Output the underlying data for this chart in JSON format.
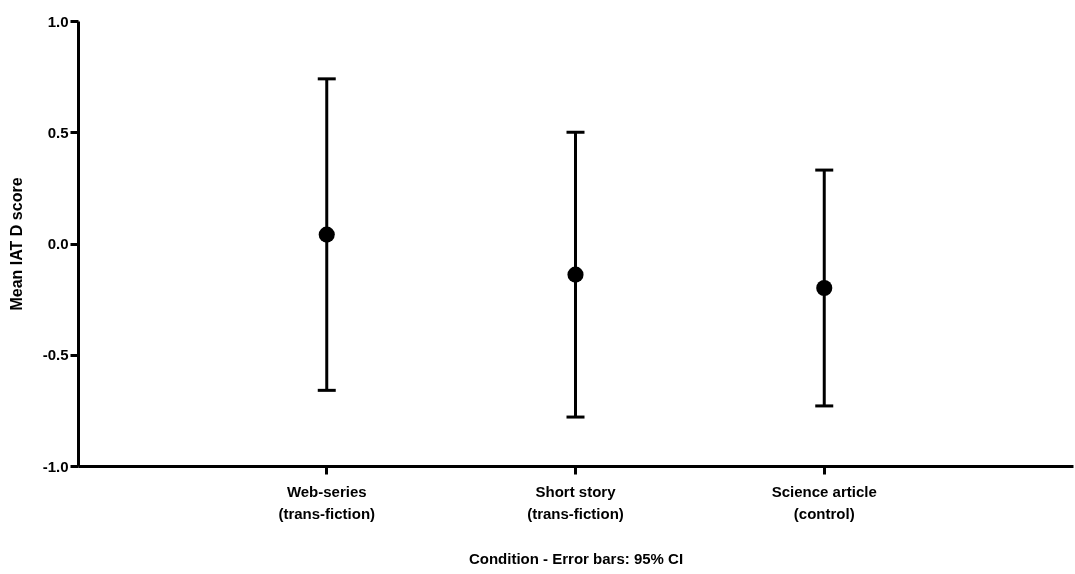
{
  "chart_data": {
    "type": "scatter",
    "xlabel": "Condition - Error bars: 95% CI",
    "ylabel": "Mean IAT D score",
    "categories": [
      "Web-series\n(trans-fiction)",
      "Short story\n(trans-fiction)",
      "Science article\n(control)"
    ],
    "series": [
      {
        "color": "#000000",
        "values": [
          0.04,
          -0.14,
          -0.2
        ],
        "errors": [
          [
            -0.66,
            0.74
          ],
          [
            -0.78,
            0.5
          ],
          [
            -0.73,
            0.33
          ]
        ]
      }
    ],
    "ylim": [
      -1.0,
      1.0
    ],
    "yticks": [
      {
        "value": -1.0,
        "label": "-1.0"
      },
      {
        "value": -0.5,
        "label": "-0.5"
      },
      {
        "value": 0.0,
        "label": "0.0"
      },
      {
        "value": 0.5,
        "label": "0.5"
      },
      {
        "value": 1.0,
        "label": "1.0"
      }
    ],
    "grid": false,
    "marker": "circle"
  }
}
